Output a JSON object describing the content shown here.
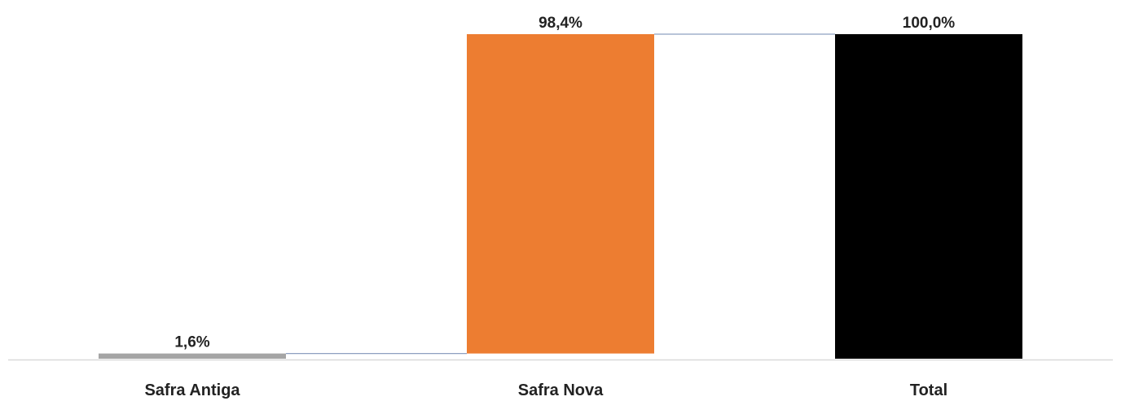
{
  "chart_data": {
    "type": "bar",
    "subtype": "waterfall",
    "categories": [
      "Safra Antiga",
      "Safra Nova",
      "Total"
    ],
    "values": [
      1.6,
      98.4,
      100.0
    ],
    "data_labels": [
      "1,6%",
      "98,4%",
      "100,0%"
    ],
    "bar_kind": [
      "increment",
      "increment",
      "total"
    ],
    "ylim": [
      0,
      100
    ],
    "grid": false,
    "legend": "none",
    "colors": {
      "Safra Antiga": "#A5A5A5",
      "Safra Nova": "#ED7D31",
      "Total": "#000000",
      "connector": "#8EA0C0",
      "baseline": "#D9D9D9",
      "text": "#222222"
    }
  }
}
